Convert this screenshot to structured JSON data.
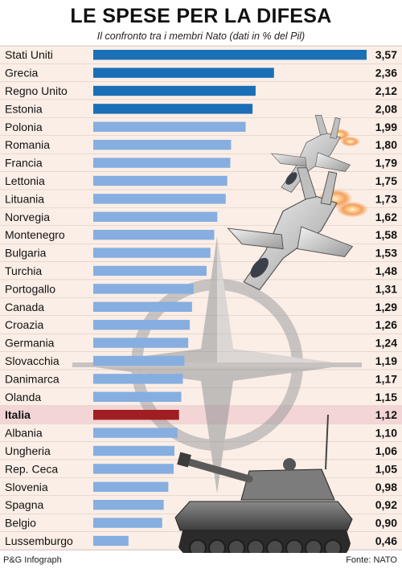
{
  "header": {
    "title": "LE SPESE PER LA DIFESA",
    "subtitle": "Il confronto tra i membri Nato (dati in % del Pil)"
  },
  "footer": {
    "credit": "P&G Infograph",
    "source": "Fonte: NATO"
  },
  "colors": {
    "top_bar": "#1a6fb6",
    "other_bar": "#86aee0",
    "highlight_bar": "#a01d22",
    "row_bg": "#fbeee6",
    "highlight_row_bg": "#f3d5d6",
    "divider": "#c7b8ae"
  },
  "chart_data": {
    "type": "bar",
    "orientation": "horizontal",
    "categories": [
      "Stati Uniti",
      "Grecia",
      "Regno Unito",
      "Estonia",
      "Polonia",
      "Romania",
      "Francia",
      "Lettonia",
      "Lituania",
      "Norvegia",
      "Montenegro",
      "Bulgaria",
      "Turchia",
      "Portogallo",
      "Canada",
      "Croazia",
      "Germania",
      "Slovacchia",
      "Danimarca",
      "Olanda",
      "Italia",
      "Albania",
      "Ungheria",
      "Rep. Ceca",
      "Slovenia",
      "Spagna",
      "Belgio",
      "Lussemburgo"
    ],
    "values": [
      3.57,
      2.36,
      2.12,
      2.08,
      1.99,
      1.8,
      1.79,
      1.75,
      1.73,
      1.62,
      1.58,
      1.53,
      1.48,
      1.31,
      1.29,
      1.26,
      1.24,
      1.19,
      1.17,
      1.15,
      1.12,
      1.1,
      1.06,
      1.05,
      0.98,
      0.92,
      0.9,
      0.46
    ],
    "value_labels": [
      "3,57",
      "2,36",
      "2,12",
      "2,08",
      "1,99",
      "1,80",
      "1,79",
      "1,75",
      "1,73",
      "1,62",
      "1,58",
      "1,53",
      "1,48",
      "1,31",
      "1,29",
      "1,26",
      "1,24",
      "1,19",
      "1,17",
      "1,15",
      "1,12",
      "1,10",
      "1,06",
      "1,05",
      "0,98",
      "0,92",
      "0,90",
      "0,46"
    ],
    "highlight": "Italia",
    "top_group_count": 4,
    "xlim": [
      0,
      3.57
    ]
  }
}
